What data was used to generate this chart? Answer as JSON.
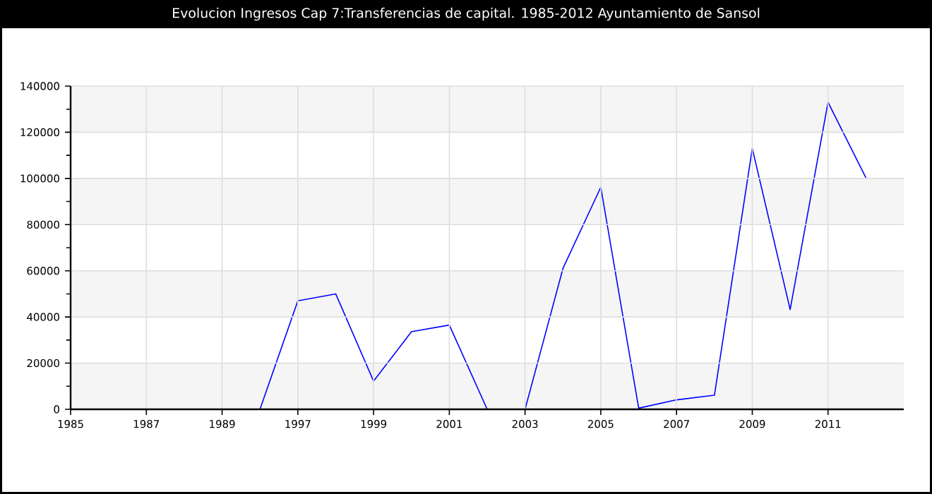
{
  "chart_data": {
    "type": "line",
    "title": "Evolucion Ingresos Cap 7:Transferencias de capital. 1985-2012 Ayuntamiento de Sansol",
    "categories": [
      "1985",
      null,
      "1987",
      null,
      "1989",
      null,
      "1997",
      null,
      "1999",
      null,
      "2001",
      null,
      "2003",
      null,
      "2005",
      null,
      "2007",
      null,
      "2009",
      null,
      "2011",
      null
    ],
    "series": [
      {
        "color": "#0000ff",
        "values": [
          null,
          null,
          null,
          null,
          null,
          0,
          47000,
          50000,
          12200,
          33600,
          36500,
          0,
          0,
          61000,
          96200,
          500,
          4100,
          6100,
          113000,
          43200,
          133000,
          100300
        ]
      }
    ],
    "ylim": [
      0,
      140000
    ],
    "yticks": [
      0,
      20000,
      40000,
      60000,
      80000,
      100000,
      120000,
      140000
    ],
    "grid": true,
    "marker": "none",
    "line_style": "solid"
  }
}
